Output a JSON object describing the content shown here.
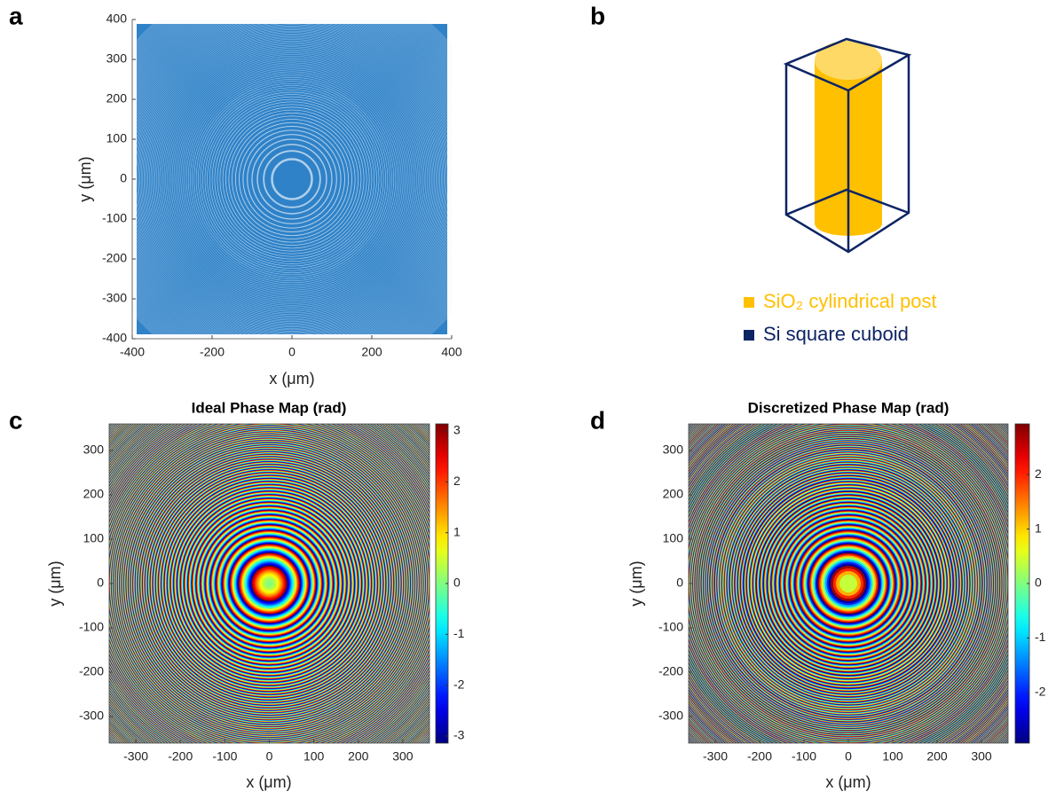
{
  "chart_data": [
    {
      "type": "image",
      "label": "a",
      "xlabel": "x (μm)",
      "ylabel": "y (μm)",
      "color": "#2f82c8",
      "xlim": [
        -400,
        400
      ],
      "ylim": [
        -400,
        400
      ],
      "xticks": [
        -400,
        -200,
        0,
        200,
        400
      ],
      "yticks": [
        -400,
        -300,
        -200,
        -100,
        0,
        100,
        200,
        300,
        400
      ]
    },
    {
      "type": "heatmap",
      "label": "c",
      "title": "Ideal Phase Map (rad)",
      "xlabel": "x (μm)",
      "ylabel": "y (μm)",
      "colormap": "jet",
      "xlim": [
        -360,
        360
      ],
      "ylim": [
        -360,
        360
      ],
      "xticks": [
        -300,
        -200,
        -100,
        0,
        100,
        200,
        300
      ],
      "yticks": [
        -300,
        -200,
        -100,
        0,
        100,
        200,
        300
      ],
      "clim": [
        -3.14,
        3.14
      ],
      "cticks": [
        -3,
        -2,
        -1,
        0,
        1,
        2,
        3
      ]
    },
    {
      "type": "heatmap",
      "label": "d",
      "title": "Discretized Phase Map (rad)",
      "xlabel": "x (μm)",
      "ylabel": "y (μm)",
      "colormap": "jet",
      "discrete_levels": 8,
      "xlim": [
        -360,
        360
      ],
      "ylim": [
        -360,
        360
      ],
      "xticks": [
        -300,
        -200,
        -100,
        0,
        100,
        200,
        300
      ],
      "yticks": [
        -300,
        -200,
        -100,
        0,
        100,
        200,
        300
      ],
      "clim": [
        -2.93,
        2.93
      ],
      "cticks": [
        -2,
        -1,
        0,
        1,
        2
      ]
    }
  ],
  "diagram": {
    "label": "b",
    "legend": [
      {
        "name": "SiO₂ cylindrical post",
        "color": "#ffc000"
      },
      {
        "name": "Si square cuboid",
        "color": "#0d2464"
      }
    ]
  }
}
